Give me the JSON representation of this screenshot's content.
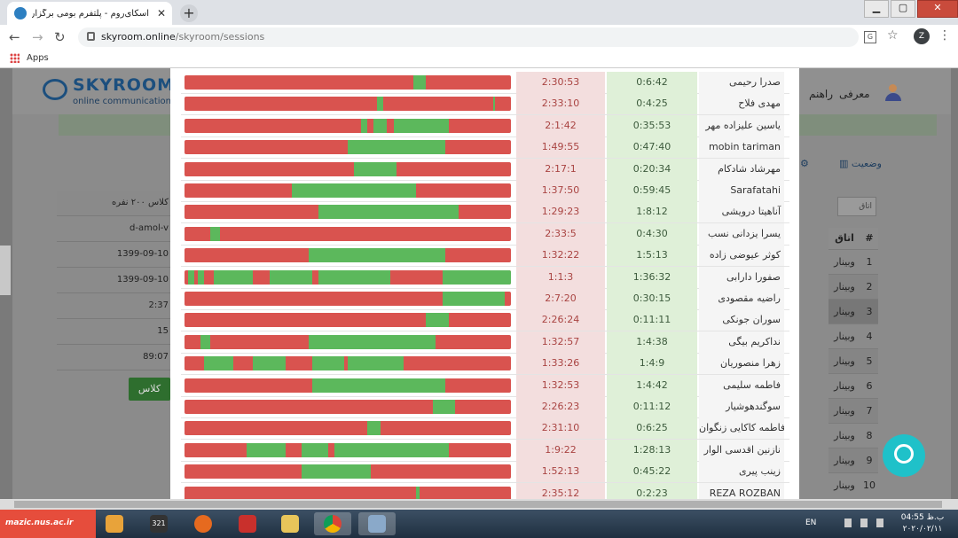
{
  "browser": {
    "tab_title": "اسکای‌روم - پلتفرم بومی برگزاری وبینار",
    "new_tab": "+",
    "window_controls": {
      "minimize": "▁",
      "maximize": "▢",
      "close": "✕"
    },
    "url_host": "skyroom.online",
    "url_path": "/skyroom/sessions",
    "profile_letter": "Z",
    "bookmark": "Apps"
  },
  "site": {
    "logo_name": "SKYROOM",
    "logo_tagline": "online communications",
    "nav_intro": "معرفی",
    "nav_guide": "راهنم",
    "tab_status": "وضعیت",
    "room_search_placeholder": "اتاق",
    "rooms_header_name": "اتاق",
    "rooms_header_num": "#",
    "rooms": [
      {
        "num": "1",
        "name": "وبینار"
      },
      {
        "num": "2",
        "name": "وبینار"
      },
      {
        "num": "3",
        "name": "وبینار"
      },
      {
        "num": "4",
        "name": "وبینار"
      },
      {
        "num": "5",
        "name": "وبینار"
      },
      {
        "num": "6",
        "name": "وبینار"
      },
      {
        "num": "7",
        "name": "وبینار"
      },
      {
        "num": "8",
        "name": "وبینار"
      },
      {
        "num": "9",
        "name": "وبینار"
      },
      {
        "num": "10",
        "name": "وبینار"
      }
    ],
    "info": [
      "کلاس ۲۰۰ نفره",
      "d-amol-v",
      "1399-09-10",
      "1399-09-10",
      "2:37",
      "15",
      "89:07"
    ],
    "class_button": "کلاس"
  },
  "attendance": [
    {
      "name": "صدرا رحیمی",
      "present": "0:6:42",
      "absent": "2:30:53",
      "segments": [
        [
          0.7,
          0.74
        ]
      ]
    },
    {
      "name": "مهدی فلاح",
      "present": "0:4:25",
      "absent": "2:33:10",
      "segments": [
        [
          0.59,
          0.61
        ],
        [
          0.946,
          0.95
        ]
      ]
    },
    {
      "name": "یاسین علیزاده مهر",
      "present": "0:35:53",
      "absent": "2:1:42",
      "segments": [
        [
          0.54,
          0.56
        ],
        [
          0.58,
          0.62
        ],
        [
          0.64,
          0.81
        ]
      ]
    },
    {
      "name": "mobin tariman",
      "present": "0:47:40",
      "absent": "1:49:55",
      "segments": [
        [
          0.5,
          0.8
        ]
      ]
    },
    {
      "name": "مهرشاد شادکام",
      "present": "0:20:34",
      "absent": "2:17:1",
      "segments": [
        [
          0.52,
          0.65
        ]
      ]
    },
    {
      "name": "Sarafatahi",
      "present": "0:59:45",
      "absent": "1:37:50",
      "segments": [
        [
          0.33,
          0.71
        ]
      ]
    },
    {
      "name": "آناهیتا درویشی",
      "present": "1:8:12",
      "absent": "1:29:23",
      "segments": [
        [
          0.41,
          0.84
        ]
      ]
    },
    {
      "name": "یسرا یزدانی نسب",
      "present": "0:4:30",
      "absent": "2:33:5",
      "segments": [
        [
          0.08,
          0.11
        ]
      ]
    },
    {
      "name": "کوثر عیوضی زاده",
      "present": "1:5:13",
      "absent": "1:32:22",
      "segments": [
        [
          0.38,
          0.8
        ]
      ]
    },
    {
      "name": "صفورا دارابی",
      "present": "1:36:32",
      "absent": "1:1:3",
      "segments": [
        [
          0.01,
          0.03
        ],
        [
          0.04,
          0.06
        ],
        [
          0.09,
          0.21
        ],
        [
          0.26,
          0.39
        ],
        [
          0.41,
          0.63
        ],
        [
          0.79,
          1.0
        ]
      ]
    },
    {
      "name": "راضیه مقصودی",
      "present": "0:30:15",
      "absent": "2:7:20",
      "segments": [
        [
          0.79,
          0.98
        ]
      ]
    },
    {
      "name": "سوران جونکی",
      "present": "0:11:11",
      "absent": "2:26:24",
      "segments": [
        [
          0.74,
          0.81
        ]
      ]
    },
    {
      "name": "نداکریم بیگی",
      "present": "1:4:38",
      "absent": "1:32:57",
      "segments": [
        [
          0.05,
          0.08
        ],
        [
          0.38,
          0.77
        ]
      ]
    },
    {
      "name": "زهرا منصوریان",
      "present": "1:4:9",
      "absent": "1:33:26",
      "segments": [
        [
          0.06,
          0.15
        ],
        [
          0.21,
          0.31
        ],
        [
          0.39,
          0.49
        ],
        [
          0.5,
          0.67
        ]
      ]
    },
    {
      "name": "فاطمه سلیمی",
      "present": "1:4:42",
      "absent": "1:32:53",
      "segments": [
        [
          0.39,
          0.8
        ]
      ]
    },
    {
      "name": "سوگندهوشیار",
      "present": "0:11:12",
      "absent": "2:26:23",
      "segments": [
        [
          0.76,
          0.83
        ]
      ]
    },
    {
      "name": "فاطمه کاکایی زنگوان",
      "present": "0:6:25",
      "absent": "2:31:10",
      "segments": [
        [
          0.56,
          0.6
        ]
      ]
    },
    {
      "name": "نازنین اقدسی الوار",
      "present": "1:28:13",
      "absent": "1:9:22",
      "segments": [
        [
          0.19,
          0.31
        ],
        [
          0.36,
          0.44
        ],
        [
          0.46,
          0.81
        ]
      ]
    },
    {
      "name": "زینب پیری",
      "present": "0:45:22",
      "absent": "1:52:13",
      "segments": [
        [
          0.36,
          0.57
        ]
      ]
    },
    {
      "name": "REZA ROZBAN",
      "present": "0:2:23",
      "absent": "2:35:12",
      "segments": [
        [
          0.71,
          0.72
        ]
      ]
    }
  ],
  "taskbar": {
    "site_watermark": "mazic.nus.ac.ir",
    "badge": "321",
    "lang": "EN",
    "time": "04:55 ب.ظ",
    "date": "۲۰۲۰/۰۲/۱۱"
  },
  "colors": {
    "present_green": "#5cb85c",
    "absent_red": "#d9534f",
    "accent": "#1fc1c9"
  }
}
